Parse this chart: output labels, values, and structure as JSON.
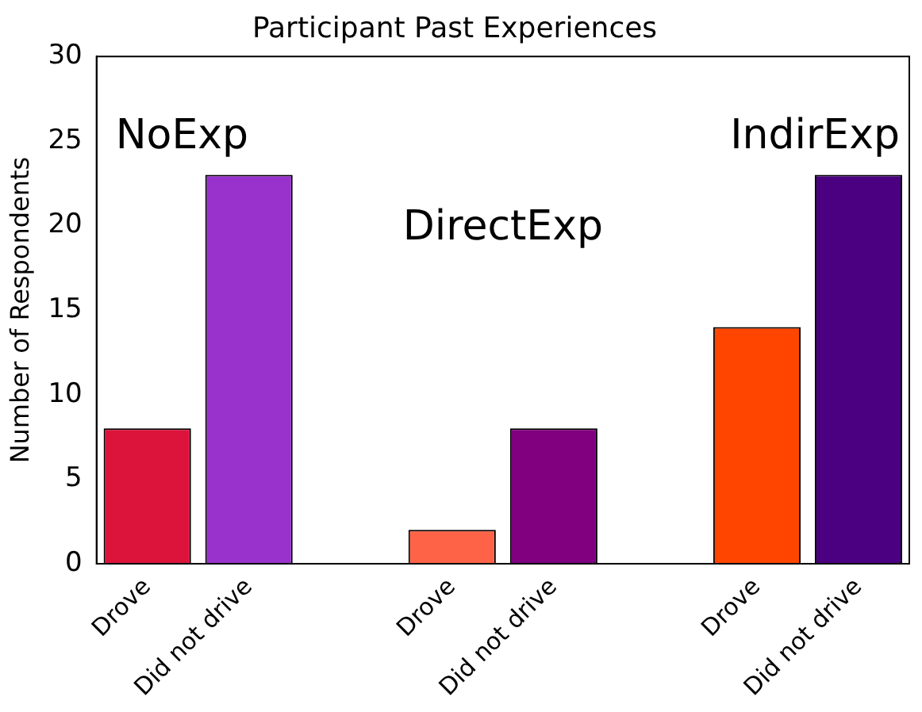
{
  "chart_data": {
    "type": "bar",
    "title": "Participant Past Experiences",
    "ylabel": "Number of Respondents",
    "categories": [
      "Drove",
      "Did not drive",
      null,
      "Drove",
      "Did not drive",
      null,
      "Drove",
      "Did not drive"
    ],
    "values": [
      8,
      23,
      null,
      2,
      8,
      null,
      14,
      23
    ],
    "colors": [
      "#dc143c",
      "#9932cc",
      "#ffffff",
      "#ff6347",
      "#800080",
      "#ffffff",
      "#ff4500",
      "#4b0082"
    ],
    "ylim": [
      0,
      30
    ],
    "yticks": [
      0,
      5,
      10,
      15,
      20,
      25,
      30
    ],
    "grid": false,
    "legend": false,
    "annotations": [
      "NoExp",
      "DirectExp",
      "IndirExp"
    ]
  }
}
